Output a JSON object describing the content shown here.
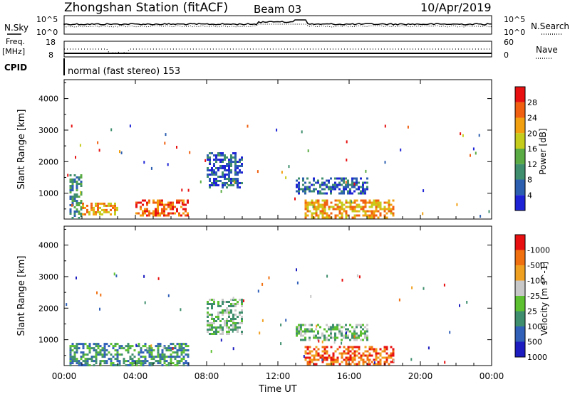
{
  "header": {
    "station": "Zhongshan Station (fitACF)",
    "beam": "Beam 03",
    "date": "10/Apr/2019"
  },
  "top_panels": {
    "nsky_label": "N.Sky",
    "nsky_tick_top": "10^5",
    "nsky_tick_bottom": "10^0",
    "nsearch_label": "N.Search",
    "freq_label_1": "Freq.",
    "freq_label_2": "[MHz]",
    "freq_tick_top": "18",
    "freq_tick_bottom": "8",
    "nave_tick_top": "60",
    "nave_tick_bottom": "0",
    "nave_label": "Nave",
    "cpid_label": "CPID",
    "cpid_value": "normal (fast stereo) 153"
  },
  "chart_data": [
    {
      "type": "heatmap",
      "title": "",
      "xlabel": "",
      "ylabel": "Slant Range [km]",
      "yticks": [
        "1000",
        "2000",
        "3000",
        "4000"
      ],
      "ylim": [
        180,
        4600
      ],
      "xlim": [
        0,
        24
      ],
      "colorbar": {
        "label": "Power [dB]",
        "ticks": [
          "4",
          "8",
          "12",
          "16",
          "20",
          "24",
          "28"
        ],
        "colors": [
          "#1e24d6",
          "#2c5fb0",
          "#3f8f6e",
          "#5bab44",
          "#c6cc1c",
          "#f2a010",
          "#f06010",
          "#e81010"
        ]
      },
      "echo_regions_hours_km": [
        {
          "t0": 0.3,
          "t1": 1.0,
          "r0": 200,
          "r1": 1600,
          "level": "12"
        },
        {
          "t0": 1.0,
          "t1": 3.0,
          "r0": 300,
          "r1": 700,
          "level": "24"
        },
        {
          "t0": 4.0,
          "t1": 7.0,
          "r0": 300,
          "r1": 800,
          "level": "28"
        },
        {
          "t0": 8.0,
          "t1": 10.0,
          "r0": 1200,
          "r1": 2300,
          "level": "8"
        },
        {
          "t0": 13.0,
          "t1": 17.0,
          "r0": 1000,
          "r1": 1500,
          "level": "8"
        },
        {
          "t0": 13.5,
          "t1": 18.5,
          "r0": 200,
          "r1": 800,
          "level": "24"
        }
      ]
    },
    {
      "type": "heatmap",
      "title": "",
      "xlabel": "Time UT",
      "ylabel": "Slant Range [km]",
      "xticks": [
        "00:00",
        "04:00",
        "08:00",
        "12:00",
        "16:00",
        "20:00",
        "00:00"
      ],
      "yticks": [
        "1000",
        "2000",
        "3000",
        "4000"
      ],
      "ylim": [
        180,
        4600
      ],
      "xlim": [
        0,
        24
      ],
      "colorbar": {
        "label": "Velocity [m s^-1]",
        "ticks": [
          "1000",
          "500",
          "100",
          "25",
          "-25",
          "-100",
          "-500",
          "-1000"
        ],
        "colors": [
          "#1c1cc0",
          "#3060b8",
          "#3f8f6e",
          "#5cc030",
          "#c8c8c8",
          "#f0a020",
          "#f07010",
          "#e81010"
        ]
      },
      "echo_regions_hours_km": [
        {
          "t0": 0.3,
          "t1": 7.0,
          "r0": 200,
          "r1": 900,
          "level": "100"
        },
        {
          "t0": 8.0,
          "t1": 10.0,
          "r0": 1200,
          "r1": 2300,
          "level": "25"
        },
        {
          "t0": 13.0,
          "t1": 17.0,
          "r0": 1000,
          "r1": 1500,
          "level": "25"
        },
        {
          "t0": 13.5,
          "t1": 18.5,
          "r0": 200,
          "r1": 800,
          "level": "-500"
        }
      ]
    }
  ]
}
